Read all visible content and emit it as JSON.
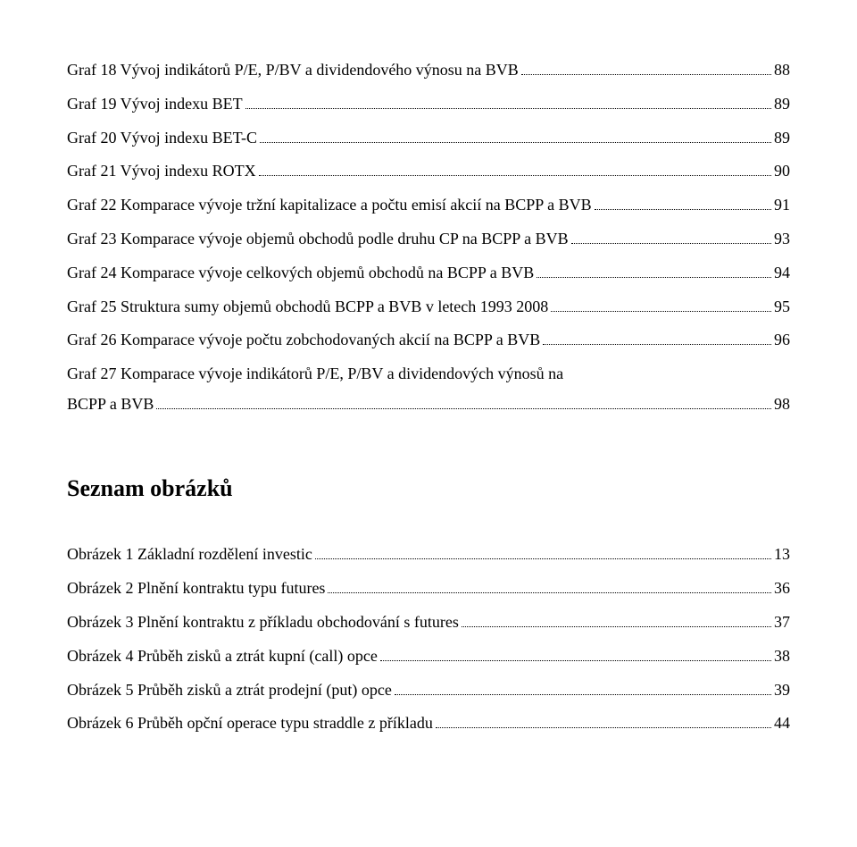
{
  "grafy": [
    {
      "label": "Graf 18 Vývoj indikátorů P/E, P/BV a dividendového výnosu na BVB",
      "page": "88"
    },
    {
      "label": "Graf 19 Vývoj indexu BET",
      "page": "89"
    },
    {
      "label": "Graf 20 Vývoj indexu BET-C",
      "page": "89"
    },
    {
      "label": "Graf 21 Vývoj indexu ROTX",
      "page": "90"
    },
    {
      "label": "Graf 22 Komparace vývoje tržní kapitalizace a počtu emisí akcií na BCPP a BVB",
      "page": "91"
    },
    {
      "label": "Graf 23 Komparace vývoje objemů obchodů podle druhu CP na BCPP a BVB",
      "page": "93"
    },
    {
      "label": "Graf 24 Komparace vývoje celkových objemů obchodů na BCPP a BVB",
      "page": "94"
    },
    {
      "label": "Graf 25 Struktura sumy objemů obchodů BCPP a BVB v letech 1993 2008",
      "page": "95"
    },
    {
      "label": "Graf 26 Komparace vývoje počtu zobchodovaných akcií na BCPP a BVB",
      "page": "96"
    },
    {
      "label": "Graf 27 Komparace vývoje indikátorů P/E, P/BV a dividendových výnosů na",
      "cont": "BCPP a BVB",
      "page": "98"
    }
  ],
  "heading_obrazky": "Seznam obrázků",
  "obrazky": [
    {
      "label": "Obrázek 1 Základní rozdělení investic",
      "page": "13"
    },
    {
      "label": "Obrázek 2 Plnění kontraktu typu futures",
      "page": "36"
    },
    {
      "label": "Obrázek 3 Plnění kontraktu z příkladu obchodování s futures",
      "page": "37"
    },
    {
      "label": "Obrázek 4 Průběh zisků a ztrát kupní (call) opce",
      "page": "38"
    },
    {
      "label": "Obrázek 5 Průběh zisků a ztrát prodejní (put) opce",
      "page": "39"
    },
    {
      "label": "Obrázek 6 Průběh opční operace typu straddle z příkladu",
      "page": "44"
    }
  ]
}
